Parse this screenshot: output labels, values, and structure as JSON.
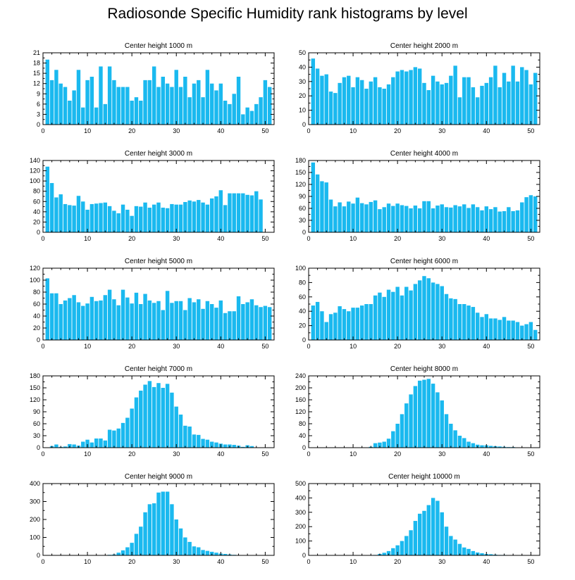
{
  "title": "Radiosonde Specific Humidity rank histograms by level",
  "bar_color": "#1ab9ef",
  "chart_data": [
    {
      "type": "bar",
      "title": "Center height 1000 m",
      "xlim": [
        0,
        52
      ],
      "ylim": [
        0,
        21
      ],
      "xticks": [
        0,
        10,
        20,
        30,
        40,
        50
      ],
      "yticks": [
        0,
        3,
        6,
        9,
        12,
        15,
        18,
        21
      ],
      "x": [
        1,
        2,
        3,
        4,
        5,
        6,
        7,
        8,
        9,
        10,
        11,
        12,
        13,
        14,
        15,
        16,
        17,
        18,
        19,
        20,
        21,
        22,
        23,
        24,
        25,
        26,
        27,
        28,
        29,
        30,
        31,
        32,
        33,
        34,
        35,
        36,
        37,
        38,
        39,
        40,
        41,
        42,
        43,
        44,
        45,
        46,
        47,
        48,
        49,
        50,
        51
      ],
      "values": [
        19,
        13,
        16,
        12,
        11,
        7,
        10,
        16,
        5,
        13,
        14,
        5,
        17,
        6,
        17,
        13,
        11,
        11,
        11,
        7,
        8,
        7,
        13,
        13,
        17,
        11,
        14,
        12,
        11,
        16,
        11,
        14,
        8,
        12,
        13,
        8,
        16,
        12,
        10,
        12,
        7,
        6,
        9,
        14,
        3,
        5,
        4,
        6,
        8,
        13,
        11
      ]
    },
    {
      "type": "bar",
      "title": "Center height 2000 m",
      "xlim": [
        0,
        52
      ],
      "ylim": [
        0,
        50
      ],
      "xticks": [
        0,
        10,
        20,
        30,
        40,
        50
      ],
      "yticks": [
        0,
        10,
        20,
        30,
        40,
        50
      ],
      "x": [
        1,
        2,
        3,
        4,
        5,
        6,
        7,
        8,
        9,
        10,
        11,
        12,
        13,
        14,
        15,
        16,
        17,
        18,
        19,
        20,
        21,
        22,
        23,
        24,
        25,
        26,
        27,
        28,
        29,
        30,
        31,
        32,
        33,
        34,
        35,
        36,
        37,
        38,
        39,
        40,
        41,
        42,
        43,
        44,
        45,
        46,
        47,
        48,
        49,
        50,
        51
      ],
      "values": [
        46,
        39,
        34,
        35,
        23,
        22,
        29,
        33,
        34,
        26,
        33,
        31,
        25,
        30,
        33,
        26,
        25,
        28,
        33,
        37,
        38,
        37,
        38,
        40,
        39,
        29,
        24,
        34,
        30,
        28,
        29,
        34,
        41,
        19,
        33,
        33,
        26,
        19,
        27,
        29,
        33,
        41,
        26,
        36,
        30,
        41,
        30,
        40,
        38,
        28,
        36
      ]
    },
    {
      "type": "bar",
      "title": "Center height 3000 m",
      "xlim": [
        0,
        52
      ],
      "ylim": [
        0,
        140
      ],
      "xticks": [
        0,
        10,
        20,
        30,
        40,
        50
      ],
      "yticks": [
        0,
        20,
        40,
        60,
        80,
        100,
        120,
        140
      ],
      "x": [
        1,
        2,
        3,
        4,
        5,
        6,
        7,
        8,
        9,
        10,
        11,
        12,
        13,
        14,
        15,
        16,
        17,
        18,
        19,
        20,
        21,
        22,
        23,
        24,
        25,
        26,
        27,
        28,
        29,
        30,
        31,
        32,
        33,
        34,
        35,
        36,
        37,
        38,
        39,
        40,
        41,
        42,
        43,
        44,
        45,
        46,
        47,
        48,
        49,
        50,
        51
      ],
      "values": [
        128,
        96,
        68,
        74,
        55,
        53,
        52,
        71,
        60,
        44,
        55,
        56,
        57,
        58,
        51,
        42,
        37,
        54,
        44,
        32,
        51,
        50,
        58,
        48,
        54,
        58,
        48,
        47,
        55,
        54,
        54,
        59,
        62,
        60,
        63,
        58,
        54,
        66,
        70,
        82,
        53,
        76,
        76,
        76,
        76,
        73,
        72,
        80,
        64,
        0,
        0
      ]
    },
    {
      "type": "bar",
      "title": "Center height 4000 m",
      "xlim": [
        0,
        52
      ],
      "ylim": [
        0,
        180
      ],
      "xticks": [
        0,
        10,
        20,
        30,
        40,
        50
      ],
      "yticks": [
        0,
        30,
        60,
        90,
        120,
        150,
        180
      ],
      "x": [
        1,
        2,
        3,
        4,
        5,
        6,
        7,
        8,
        9,
        10,
        11,
        12,
        13,
        14,
        15,
        16,
        17,
        18,
        19,
        20,
        21,
        22,
        23,
        24,
        25,
        26,
        27,
        28,
        29,
        30,
        31,
        32,
        33,
        34,
        35,
        36,
        37,
        38,
        39,
        40,
        41,
        42,
        43,
        44,
        45,
        46,
        47,
        48,
        49,
        50,
        51
      ],
      "values": [
        175,
        145,
        128,
        125,
        82,
        65,
        75,
        65,
        77,
        72,
        87,
        73,
        70,
        76,
        80,
        58,
        63,
        72,
        66,
        72,
        68,
        66,
        60,
        67,
        60,
        78,
        78,
        60,
        67,
        70,
        63,
        62,
        68,
        65,
        70,
        61,
        70,
        63,
        55,
        65,
        58,
        63,
        52,
        53,
        63,
        53,
        55,
        75,
        88,
        93,
        90
      ]
    },
    {
      "type": "bar",
      "title": "Center height 5000 m",
      "xlim": [
        0,
        52
      ],
      "ylim": [
        0,
        120
      ],
      "xticks": [
        0,
        10,
        20,
        30,
        40,
        50
      ],
      "yticks": [
        0,
        20,
        40,
        60,
        80,
        100,
        120
      ],
      "x": [
        1,
        2,
        3,
        4,
        5,
        6,
        7,
        8,
        9,
        10,
        11,
        12,
        13,
        14,
        15,
        16,
        17,
        18,
        19,
        20,
        21,
        22,
        23,
        24,
        25,
        26,
        27,
        28,
        29,
        30,
        31,
        32,
        33,
        34,
        35,
        36,
        37,
        38,
        39,
        40,
        41,
        42,
        43,
        44,
        45,
        46,
        47,
        48,
        49,
        50,
        51
      ],
      "values": [
        103,
        78,
        78,
        60,
        66,
        70,
        75,
        63,
        57,
        61,
        72,
        65,
        66,
        75,
        84,
        68,
        58,
        84,
        71,
        61,
        79,
        60,
        77,
        66,
        62,
        65,
        50,
        82,
        62,
        65,
        65,
        50,
        70,
        63,
        68,
        52,
        65,
        60,
        54,
        66,
        45,
        48,
        48,
        73,
        60,
        63,
        68,
        58,
        55,
        57,
        55
      ]
    },
    {
      "type": "bar",
      "title": "Center height 6000 m",
      "xlim": [
        0,
        52
      ],
      "ylim": [
        0,
        100
      ],
      "xticks": [
        0,
        10,
        20,
        30,
        40,
        50
      ],
      "yticks": [
        0,
        20,
        40,
        60,
        80,
        100
      ],
      "x": [
        1,
        2,
        3,
        4,
        5,
        6,
        7,
        8,
        9,
        10,
        11,
        12,
        13,
        14,
        15,
        16,
        17,
        18,
        19,
        20,
        21,
        22,
        23,
        24,
        25,
        26,
        27,
        28,
        29,
        30,
        31,
        32,
        33,
        34,
        35,
        36,
        37,
        38,
        39,
        40,
        41,
        42,
        43,
        44,
        45,
        46,
        47,
        48,
        49,
        50,
        51
      ],
      "values": [
        48,
        53,
        40,
        25,
        36,
        38,
        47,
        43,
        40,
        45,
        45,
        48,
        50,
        50,
        62,
        66,
        60,
        70,
        67,
        74,
        62,
        74,
        69,
        78,
        83,
        89,
        86,
        80,
        78,
        75,
        64,
        58,
        57,
        50,
        50,
        48,
        46,
        38,
        32,
        36,
        30,
        30,
        28,
        32,
        27,
        27,
        25,
        20,
        22,
        25,
        14
      ]
    },
    {
      "type": "bar",
      "title": "Center height 7000 m",
      "xlim": [
        0,
        52
      ],
      "ylim": [
        0,
        180
      ],
      "xticks": [
        0,
        10,
        20,
        30,
        40,
        50
      ],
      "yticks": [
        0,
        30,
        60,
        90,
        120,
        150,
        180
      ],
      "x": [
        1,
        2,
        3,
        4,
        5,
        6,
        7,
        8,
        9,
        10,
        11,
        12,
        13,
        14,
        15,
        16,
        17,
        18,
        19,
        20,
        21,
        22,
        23,
        24,
        25,
        26,
        27,
        28,
        29,
        30,
        31,
        32,
        33,
        34,
        35,
        36,
        37,
        38,
        39,
        40,
        41,
        42,
        43,
        44,
        45,
        46,
        47,
        48,
        49,
        50,
        51
      ],
      "values": [
        0,
        4,
        8,
        2,
        3,
        9,
        8,
        5,
        15,
        20,
        13,
        23,
        23,
        18,
        45,
        43,
        48,
        62,
        75,
        98,
        126,
        143,
        158,
        167,
        152,
        162,
        150,
        160,
        138,
        103,
        83,
        55,
        53,
        33,
        32,
        22,
        20,
        15,
        13,
        10,
        8,
        8,
        7,
        5,
        2,
        6,
        4,
        0,
        0,
        0,
        0
      ]
    },
    {
      "type": "bar",
      "title": "Center height 8000 m",
      "xlim": [
        0,
        52
      ],
      "ylim": [
        0,
        240
      ],
      "xticks": [
        0,
        10,
        20,
        30,
        40,
        50
      ],
      "yticks": [
        0,
        40,
        80,
        120,
        160,
        200,
        240
      ],
      "x": [
        1,
        2,
        3,
        4,
        5,
        6,
        7,
        8,
        9,
        10,
        11,
        12,
        13,
        14,
        15,
        16,
        17,
        18,
        19,
        20,
        21,
        22,
        23,
        24,
        25,
        26,
        27,
        28,
        29,
        30,
        31,
        32,
        33,
        34,
        35,
        36,
        37,
        38,
        39,
        40,
        41,
        42,
        43,
        44,
        45,
        46,
        47,
        48,
        49,
        50,
        51
      ],
      "values": [
        0,
        0,
        0,
        0,
        0,
        0,
        0,
        0,
        0,
        0,
        0,
        0,
        0,
        3,
        15,
        17,
        20,
        30,
        55,
        80,
        112,
        148,
        178,
        206,
        224,
        227,
        230,
        214,
        185,
        158,
        112,
        80,
        58,
        40,
        32,
        20,
        15,
        10,
        8,
        8,
        6,
        5,
        4,
        3,
        2,
        2,
        1,
        1,
        0,
        0,
        0
      ]
    },
    {
      "type": "bar",
      "title": "Center height 9000 m",
      "xlim": [
        0,
        52
      ],
      "ylim": [
        0,
        400
      ],
      "xticks": [
        0,
        10,
        20,
        30,
        40,
        50
      ],
      "yticks": [
        0,
        100,
        200,
        300,
        400
      ],
      "x": [
        1,
        2,
        3,
        4,
        5,
        6,
        7,
        8,
        9,
        10,
        11,
        12,
        13,
        14,
        15,
        16,
        17,
        18,
        19,
        20,
        21,
        22,
        23,
        24,
        25,
        26,
        27,
        28,
        29,
        30,
        31,
        32,
        33,
        34,
        35,
        36,
        37,
        38,
        39,
        40,
        41,
        42,
        43,
        44,
        45,
        46,
        47,
        48,
        49,
        50,
        51
      ],
      "values": [
        0,
        0,
        0,
        0,
        0,
        0,
        0,
        0,
        0,
        0,
        0,
        0,
        0,
        0,
        3,
        5,
        15,
        28,
        45,
        70,
        120,
        160,
        240,
        285,
        290,
        350,
        355,
        355,
        285,
        200,
        150,
        100,
        75,
        50,
        45,
        30,
        25,
        20,
        15,
        10,
        8,
        5,
        3,
        2,
        0,
        0,
        0,
        0,
        0,
        0,
        0
      ]
    },
    {
      "type": "bar",
      "title": "Center height 10000 m",
      "xlim": [
        0,
        52
      ],
      "ylim": [
        0,
        500
      ],
      "xticks": [
        0,
        10,
        20,
        30,
        40,
        50
      ],
      "yticks": [
        0,
        100,
        200,
        300,
        400,
        500
      ],
      "x": [
        1,
        2,
        3,
        4,
        5,
        6,
        7,
        8,
        9,
        10,
        11,
        12,
        13,
        14,
        15,
        16,
        17,
        18,
        19,
        20,
        21,
        22,
        23,
        24,
        25,
        26,
        27,
        28,
        29,
        30,
        31,
        32,
        33,
        34,
        35,
        36,
        37,
        38,
        39,
        40,
        41,
        42,
        43,
        44,
        45,
        46,
        47,
        48,
        49,
        50,
        51
      ],
      "values": [
        0,
        0,
        0,
        0,
        0,
        0,
        0,
        0,
        0,
        0,
        0,
        0,
        0,
        0,
        3,
        10,
        18,
        30,
        50,
        70,
        100,
        135,
        175,
        240,
        290,
        310,
        350,
        400,
        380,
        300,
        200,
        135,
        110,
        80,
        55,
        45,
        30,
        20,
        15,
        10,
        8,
        5,
        3,
        3,
        2,
        2,
        1,
        0,
        0,
        0,
        0
      ]
    }
  ]
}
